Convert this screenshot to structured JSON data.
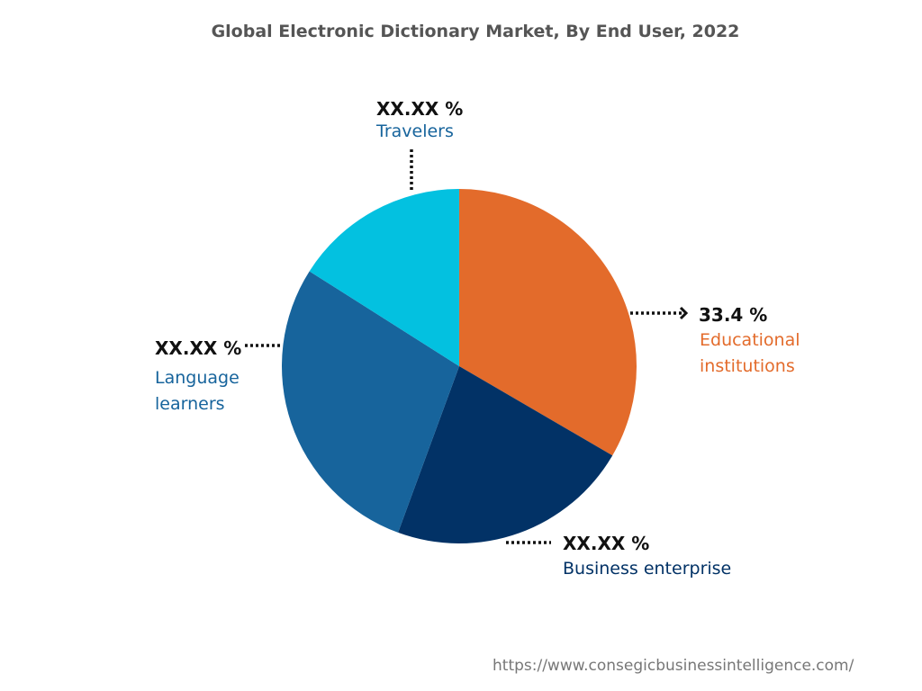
{
  "chart_data": {
    "type": "pie",
    "title": "Global Electronic Dictionary Market, By End User, 2022",
    "categories": [
      "Educational institutions",
      "Business enterprise",
      "Language learners",
      "Travelers"
    ],
    "values": [
      33.4,
      22.2,
      28.4,
      16.0
    ],
    "value_labels": [
      "33.4 %",
      "XX.XX %",
      "XX.XX %",
      "XX.XX %"
    ],
    "colors": [
      "#e36b2b",
      "#023266",
      "#17649c",
      "#03c1e0"
    ],
    "source": "https://www.consegicbusinessintelligence.com/"
  }
}
